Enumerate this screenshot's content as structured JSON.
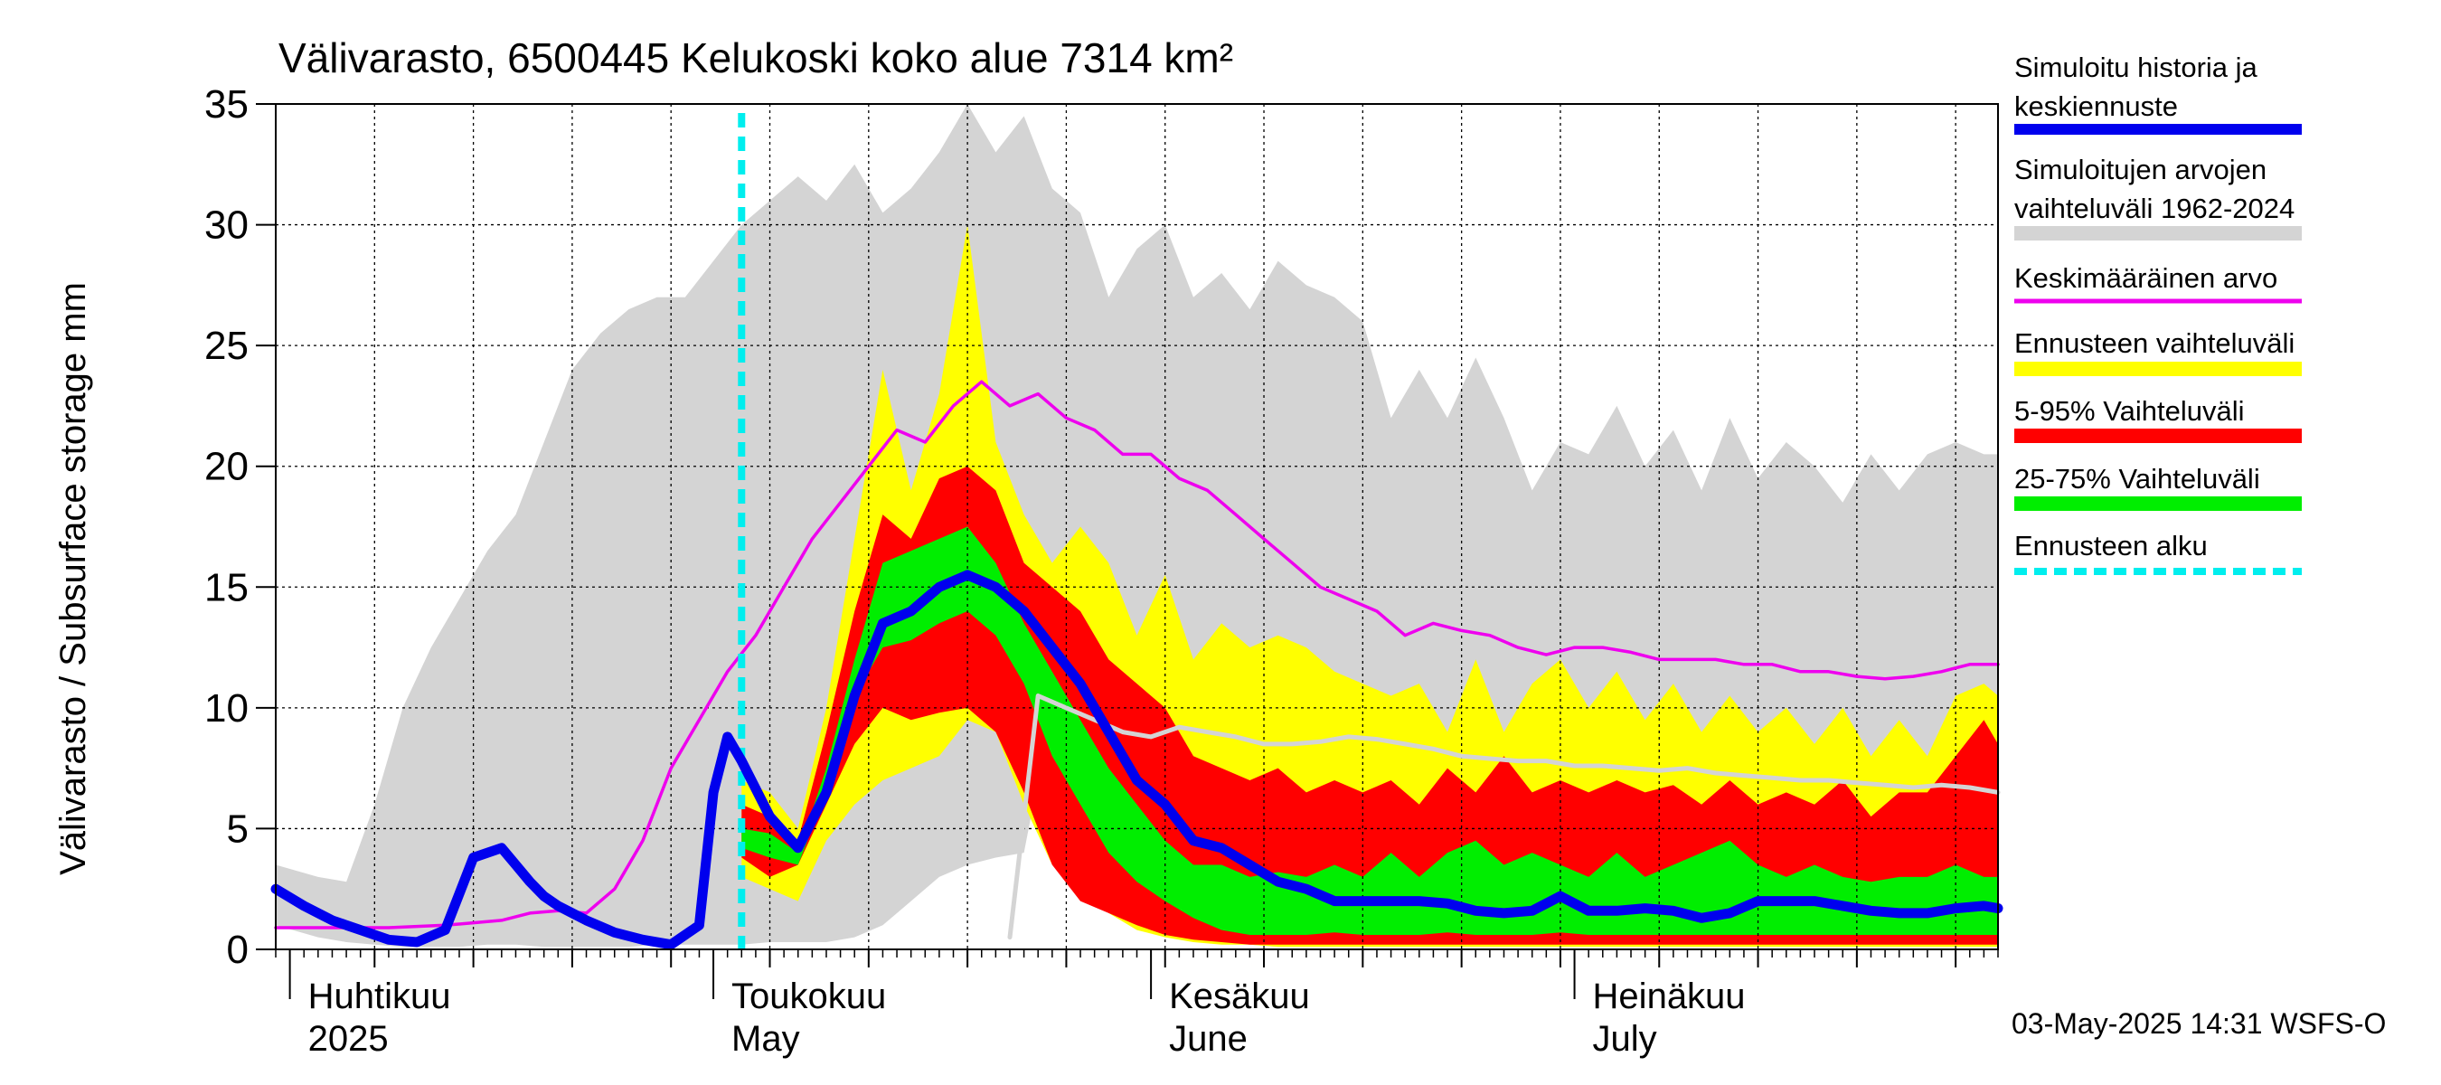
{
  "chart_data": {
    "type": "area",
    "title": "Välivarasto, 6500445 Kelukoski koko alue 7314 km²",
    "ylabel": "Välivarasto / Subsurface storage  mm",
    "ylim": [
      0,
      35
    ],
    "yticks": [
      0,
      5,
      10,
      15,
      20,
      25,
      30,
      35
    ],
    "xlim": [
      "2025-03-31",
      "2025-07-31"
    ],
    "grid": true,
    "legend_position": "right",
    "forecast_start": "2025-05-03",
    "months": [
      {
        "fi": "Huhtikuu",
        "en": "2025",
        "start": "2025-04-01"
      },
      {
        "fi": "Toukokuu",
        "en": "May",
        "start": "2025-05-01"
      },
      {
        "fi": "Kesäkuu",
        "en": "June",
        "start": "2025-06-01"
      },
      {
        "fi": "Heinäkuu",
        "en": "July",
        "start": "2025-07-01"
      }
    ],
    "legend": [
      {
        "key": "sim",
        "line1": "Simuloitu historia ja",
        "line2": "keskiennuste",
        "color": "#0000ee",
        "kind": "line"
      },
      {
        "key": "range",
        "line1": "Simuloitujen arvojen",
        "line2": "vaihteluväli 1962-2024",
        "color": "#d4d4d4",
        "kind": "band"
      },
      {
        "key": "mean",
        "line1": "Keskimääräinen arvo",
        "line2": "",
        "color": "#ee00ee",
        "kind": "thin"
      },
      {
        "key": "fc_range",
        "line1": "Ennusteen vaihteluväli",
        "line2": "",
        "color": "#ffff00",
        "kind": "band"
      },
      {
        "key": "p5_95",
        "line1": "5-95% Vaihteluväli",
        "line2": "",
        "color": "#ff0000",
        "kind": "band"
      },
      {
        "key": "p25_75",
        "line1": "25-75% Vaihteluväli",
        "line2": "",
        "color": "#00ee00",
        "kind": "band"
      },
      {
        "key": "fc_start",
        "line1": "Ennusteen alku",
        "line2": "",
        "color": "#00eeee",
        "kind": "dash"
      }
    ],
    "series": {
      "hist_range": {
        "x": [
          "2025-03-31",
          "2025-04-03",
          "2025-04-05",
          "2025-04-07",
          "2025-04-09",
          "2025-04-11",
          "2025-04-13",
          "2025-04-15",
          "2025-04-17",
          "2025-04-19",
          "2025-04-21",
          "2025-04-23",
          "2025-04-25",
          "2025-04-27",
          "2025-04-29",
          "2025-05-01",
          "2025-05-03",
          "2025-05-05",
          "2025-05-07",
          "2025-05-09",
          "2025-05-11",
          "2025-05-13",
          "2025-05-15",
          "2025-05-17",
          "2025-05-19",
          "2025-05-21",
          "2025-05-23",
          "2025-05-25",
          "2025-05-27",
          "2025-05-29",
          "2025-05-31",
          "2025-06-02",
          "2025-06-04",
          "2025-06-06",
          "2025-06-08",
          "2025-06-10",
          "2025-06-12",
          "2025-06-14",
          "2025-06-16",
          "2025-06-18",
          "2025-06-20",
          "2025-06-22",
          "2025-06-24",
          "2025-06-26",
          "2025-06-28",
          "2025-06-30",
          "2025-07-02",
          "2025-07-04",
          "2025-07-06",
          "2025-07-08",
          "2025-07-10",
          "2025-07-12",
          "2025-07-14",
          "2025-07-16",
          "2025-07-18",
          "2025-07-20",
          "2025-07-22",
          "2025-07-24",
          "2025-07-26",
          "2025-07-28",
          "2025-07-30",
          "2025-07-31"
        ],
        "upper": [
          3.5,
          3.0,
          2.8,
          6.0,
          10.0,
          12.5,
          14.5,
          16.5,
          18.0,
          21.0,
          24.0,
          25.5,
          26.5,
          27.0,
          27.0,
          28.5,
          30.0,
          31.0,
          32.0,
          31.0,
          32.5,
          30.5,
          31.5,
          33.0,
          35.0,
          33.0,
          34.5,
          31.5,
          30.5,
          27.0,
          29.0,
          30.0,
          27.0,
          28.0,
          26.5,
          28.5,
          27.5,
          27.0,
          26.0,
          22.0,
          24.0,
          22.0,
          24.5,
          22.0,
          19.0,
          21.0,
          20.5,
          22.5,
          20.0,
          21.5,
          19.0,
          22.0,
          19.5,
          21.0,
          20.0,
          18.5,
          20.5,
          19.0,
          20.5,
          21.0,
          20.5,
          20.5
        ],
        "lower": [
          1.0,
          0.5,
          0.3,
          0.2,
          0.1,
          0.1,
          0.1,
          0.2,
          0.2,
          0.1,
          0.1,
          0.1,
          0.1,
          0.2,
          0.2,
          0.2,
          0.2,
          0.3,
          0.3,
          0.3,
          0.5,
          1.0,
          2.0,
          3.0,
          3.5,
          3.8,
          4.0,
          10.0,
          8.0,
          4.0,
          2.0,
          1.0,
          0.5,
          0.3,
          0.2,
          0.1,
          0.1,
          0.1,
          0.1,
          0.1,
          0.1,
          0.1,
          0.1,
          0.1,
          0.1,
          0.1,
          0.1,
          0.1,
          0.1,
          0.1,
          0.1,
          0.1,
          0.1,
          0.1,
          0.1,
          0.1,
          0.1,
          0.1,
          0.1,
          0.1,
          0.1,
          0.1
        ]
      },
      "fc_range": {
        "x": [
          "2025-05-03",
          "2025-05-05",
          "2025-05-07",
          "2025-05-09",
          "2025-05-11",
          "2025-05-13",
          "2025-05-15",
          "2025-05-17",
          "2025-05-19",
          "2025-05-21",
          "2025-05-23",
          "2025-05-25",
          "2025-05-27",
          "2025-05-29",
          "2025-05-31",
          "2025-06-02",
          "2025-06-04",
          "2025-06-06",
          "2025-06-08",
          "2025-06-10",
          "2025-06-12",
          "2025-06-14",
          "2025-06-16",
          "2025-06-18",
          "2025-06-20",
          "2025-06-22",
          "2025-06-24",
          "2025-06-26",
          "2025-06-28",
          "2025-06-30",
          "2025-07-02",
          "2025-07-04",
          "2025-07-06",
          "2025-07-08",
          "2025-07-10",
          "2025-07-12",
          "2025-07-14",
          "2025-07-16",
          "2025-07-18",
          "2025-07-20",
          "2025-07-22",
          "2025-07-24",
          "2025-07-26",
          "2025-07-28",
          "2025-07-30",
          "2025-07-31"
        ],
        "upper": [
          7.0,
          6.5,
          5.0,
          10.0,
          17.0,
          24.0,
          19.0,
          23.0,
          30.0,
          21.0,
          18.0,
          16.0,
          17.5,
          16.0,
          13.0,
          15.5,
          12.0,
          13.5,
          12.5,
          13.0,
          12.5,
          11.5,
          11.0,
          10.5,
          11.0,
          9.0,
          12.0,
          9.0,
          11.0,
          12.0,
          10.0,
          11.5,
          9.5,
          11.0,
          9.0,
          10.5,
          9.0,
          10.0,
          8.5,
          10.0,
          8.0,
          9.5,
          8.0,
          10.5,
          11.0,
          10.5
        ],
        "lower": [
          3.0,
          2.5,
          2.0,
          4.5,
          6.0,
          7.0,
          7.5,
          8.0,
          9.5,
          9.0,
          6.0,
          3.5,
          2.5,
          1.5,
          0.8,
          0.5,
          0.3,
          0.2,
          0.2,
          0.1,
          0.1,
          0.1,
          0.1,
          0.1,
          0.1,
          0.1,
          0.1,
          0.1,
          0.1,
          0.1,
          0.1,
          0.1,
          0.1,
          0.1,
          0.1,
          0.1,
          0.1,
          0.1,
          0.1,
          0.1,
          0.1,
          0.1,
          0.1,
          0.1,
          0.1,
          0.1
        ]
      },
      "p5_95": {
        "x": [
          "2025-05-03",
          "2025-05-05",
          "2025-05-07",
          "2025-05-09",
          "2025-05-11",
          "2025-05-13",
          "2025-05-15",
          "2025-05-17",
          "2025-05-19",
          "2025-05-21",
          "2025-05-23",
          "2025-05-25",
          "2025-05-27",
          "2025-05-29",
          "2025-05-31",
          "2025-06-02",
          "2025-06-04",
          "2025-06-06",
          "2025-06-08",
          "2025-06-10",
          "2025-06-12",
          "2025-06-14",
          "2025-06-16",
          "2025-06-18",
          "2025-06-20",
          "2025-06-22",
          "2025-06-24",
          "2025-06-26",
          "2025-06-28",
          "2025-06-30",
          "2025-07-02",
          "2025-07-04",
          "2025-07-06",
          "2025-07-08",
          "2025-07-10",
          "2025-07-12",
          "2025-07-14",
          "2025-07-16",
          "2025-07-18",
          "2025-07-20",
          "2025-07-22",
          "2025-07-24",
          "2025-07-26",
          "2025-07-28",
          "2025-07-30",
          "2025-07-31"
        ],
        "upper": [
          6.0,
          5.5,
          4.5,
          9.0,
          14.0,
          18.0,
          17.0,
          19.5,
          20.0,
          19.0,
          16.0,
          15.0,
          14.0,
          12.0,
          11.0,
          10.0,
          8.0,
          7.5,
          7.0,
          7.5,
          6.5,
          7.0,
          6.5,
          7.0,
          6.0,
          7.5,
          6.5,
          8.0,
          6.5,
          7.0,
          6.5,
          7.0,
          6.5,
          6.8,
          6.0,
          7.0,
          6.0,
          6.5,
          6.0,
          7.0,
          5.5,
          6.5,
          6.5,
          8.0,
          9.5,
          8.5
        ],
        "lower": [
          3.8,
          3.0,
          3.5,
          6.0,
          8.5,
          10.0,
          9.5,
          9.8,
          10.0,
          9.0,
          6.5,
          3.5,
          2.0,
          1.5,
          1.0,
          0.6,
          0.4,
          0.3,
          0.2,
          0.2,
          0.2,
          0.2,
          0.2,
          0.2,
          0.2,
          0.2,
          0.2,
          0.2,
          0.2,
          0.2,
          0.2,
          0.2,
          0.2,
          0.2,
          0.2,
          0.2,
          0.2,
          0.2,
          0.2,
          0.2,
          0.2,
          0.2,
          0.2,
          0.2,
          0.2,
          0.2
        ]
      },
      "p25_75": {
        "x": [
          "2025-05-03",
          "2025-05-05",
          "2025-05-07",
          "2025-05-09",
          "2025-05-11",
          "2025-05-13",
          "2025-05-15",
          "2025-05-17",
          "2025-05-19",
          "2025-05-21",
          "2025-05-23",
          "2025-05-25",
          "2025-05-27",
          "2025-05-29",
          "2025-05-31",
          "2025-06-02",
          "2025-06-04",
          "2025-06-06",
          "2025-06-08",
          "2025-06-10",
          "2025-06-12",
          "2025-06-14",
          "2025-06-16",
          "2025-06-18",
          "2025-06-20",
          "2025-06-22",
          "2025-06-24",
          "2025-06-26",
          "2025-06-28",
          "2025-06-30",
          "2025-07-02",
          "2025-07-04",
          "2025-07-06",
          "2025-07-08",
          "2025-07-10",
          "2025-07-12",
          "2025-07-14",
          "2025-07-16",
          "2025-07-18",
          "2025-07-20",
          "2025-07-22",
          "2025-07-24",
          "2025-07-26",
          "2025-07-28",
          "2025-07-30",
          "2025-07-31"
        ],
        "upper": [
          5.0,
          4.8,
          4.0,
          7.5,
          12.0,
          16.0,
          16.5,
          17.0,
          17.5,
          16.0,
          13.5,
          11.5,
          9.5,
          7.5,
          6.0,
          4.5,
          3.5,
          3.5,
          3.0,
          3.2,
          3.0,
          3.5,
          3.0,
          4.0,
          3.0,
          4.0,
          4.5,
          3.5,
          4.0,
          3.5,
          3.0,
          4.0,
          3.0,
          3.5,
          4.0,
          4.5,
          3.5,
          3.0,
          3.5,
          3.0,
          2.8,
          3.0,
          3.0,
          3.5,
          3.0,
          3.0
        ],
        "lower": [
          4.2,
          3.8,
          3.5,
          6.5,
          10.5,
          12.5,
          12.8,
          13.5,
          14.0,
          13.0,
          11.0,
          8.0,
          6.0,
          4.0,
          2.8,
          2.0,
          1.3,
          0.8,
          0.6,
          0.6,
          0.6,
          0.7,
          0.6,
          0.6,
          0.6,
          0.7,
          0.6,
          0.6,
          0.6,
          0.7,
          0.6,
          0.6,
          0.6,
          0.6,
          0.6,
          0.6,
          0.6,
          0.6,
          0.6,
          0.6,
          0.6,
          0.6,
          0.6,
          0.6,
          0.6,
          0.6
        ]
      },
      "mean": {
        "x": [
          "2025-03-31",
          "2025-04-04",
          "2025-04-08",
          "2025-04-12",
          "2025-04-16",
          "2025-04-18",
          "2025-04-20",
          "2025-04-22",
          "2025-04-24",
          "2025-04-26",
          "2025-04-28",
          "2025-04-30",
          "2025-05-02",
          "2025-05-04",
          "2025-05-06",
          "2025-05-08",
          "2025-05-10",
          "2025-05-12",
          "2025-05-14",
          "2025-05-16",
          "2025-05-18",
          "2025-05-20",
          "2025-05-22",
          "2025-05-24",
          "2025-05-26",
          "2025-05-28",
          "2025-05-30",
          "2025-06-01",
          "2025-06-03",
          "2025-06-05",
          "2025-06-07",
          "2025-06-09",
          "2025-06-11",
          "2025-06-13",
          "2025-06-15",
          "2025-06-17",
          "2025-06-19",
          "2025-06-21",
          "2025-06-23",
          "2025-06-25",
          "2025-06-27",
          "2025-06-29",
          "2025-07-01",
          "2025-07-03",
          "2025-07-05",
          "2025-07-07",
          "2025-07-09",
          "2025-07-11",
          "2025-07-13",
          "2025-07-15",
          "2025-07-17",
          "2025-07-19",
          "2025-07-21",
          "2025-07-23",
          "2025-07-25",
          "2025-07-27",
          "2025-07-29",
          "2025-07-31"
        ],
        "y": [
          0.9,
          0.9,
          0.9,
          1.0,
          1.2,
          1.5,
          1.6,
          1.5,
          2.5,
          4.5,
          7.5,
          9.5,
          11.5,
          13.0,
          15.0,
          17.0,
          18.5,
          20.0,
          21.5,
          21.0,
          22.5,
          23.5,
          22.5,
          23.0,
          22.0,
          21.5,
          20.5,
          20.5,
          19.5,
          19.0,
          18.0,
          17.0,
          16.0,
          15.0,
          14.5,
          14.0,
          13.0,
          13.5,
          13.2,
          13.0,
          12.5,
          12.2,
          12.5,
          12.5,
          12.3,
          12.0,
          12.0,
          12.0,
          11.8,
          11.8,
          11.5,
          11.5,
          11.3,
          11.2,
          11.3,
          11.5,
          11.8,
          11.8
        ]
      },
      "median_forecast": {
        "x": [
          "2025-05-22",
          "2025-05-24",
          "2025-05-26",
          "2025-05-28",
          "2025-05-30",
          "2025-06-01",
          "2025-06-03",
          "2025-06-05",
          "2025-06-07",
          "2025-06-09",
          "2025-06-11",
          "2025-06-13",
          "2025-06-15",
          "2025-06-17",
          "2025-06-19",
          "2025-06-21",
          "2025-06-23",
          "2025-06-25",
          "2025-06-27",
          "2025-06-29",
          "2025-07-01",
          "2025-07-03",
          "2025-07-05",
          "2025-07-07",
          "2025-07-09",
          "2025-07-11",
          "2025-07-13",
          "2025-07-15",
          "2025-07-17",
          "2025-07-19",
          "2025-07-21",
          "2025-07-23",
          "2025-07-25",
          "2025-07-27",
          "2025-07-29",
          "2025-07-31"
        ],
        "y": [
          0.5,
          10.5,
          10.0,
          9.5,
          9.0,
          8.8,
          9.2,
          9.0,
          8.8,
          8.5,
          8.5,
          8.6,
          8.8,
          8.7,
          8.5,
          8.3,
          8.0,
          7.9,
          7.8,
          7.8,
          7.6,
          7.6,
          7.5,
          7.4,
          7.5,
          7.3,
          7.2,
          7.1,
          7.0,
          7.0,
          6.9,
          6.8,
          6.7,
          6.8,
          6.7,
          6.5
        ]
      },
      "simulated": {
        "x": [
          "2025-03-31",
          "2025-04-02",
          "2025-04-04",
          "2025-04-06",
          "2025-04-08",
          "2025-04-10",
          "2025-04-12",
          "2025-04-14",
          "2025-04-16",
          "2025-04-17",
          "2025-04-18",
          "2025-04-19",
          "2025-04-20",
          "2025-04-22",
          "2025-04-24",
          "2025-04-26",
          "2025-04-28",
          "2025-04-30",
          "2025-05-01",
          "2025-05-02",
          "2025-05-03",
          "2025-05-05",
          "2025-05-07",
          "2025-05-09",
          "2025-05-11",
          "2025-05-13",
          "2025-05-15",
          "2025-05-17",
          "2025-05-19",
          "2025-05-21",
          "2025-05-23",
          "2025-05-25",
          "2025-05-27",
          "2025-05-29",
          "2025-05-31",
          "2025-06-02",
          "2025-06-04",
          "2025-06-06",
          "2025-06-08",
          "2025-06-10",
          "2025-06-12",
          "2025-06-14",
          "2025-06-16",
          "2025-06-18",
          "2025-06-20",
          "2025-06-22",
          "2025-06-24",
          "2025-06-26",
          "2025-06-28",
          "2025-06-30",
          "2025-07-02",
          "2025-07-04",
          "2025-07-06",
          "2025-07-08",
          "2025-07-10",
          "2025-07-12",
          "2025-07-14",
          "2025-07-16",
          "2025-07-18",
          "2025-07-20",
          "2025-07-22",
          "2025-07-24",
          "2025-07-26",
          "2025-07-28",
          "2025-07-30",
          "2025-07-31"
        ],
        "y": [
          2.5,
          1.8,
          1.2,
          0.8,
          0.4,
          0.3,
          0.8,
          3.8,
          4.2,
          3.5,
          2.8,
          2.2,
          1.8,
          1.2,
          0.7,
          0.4,
          0.2,
          1.0,
          6.5,
          8.8,
          7.8,
          5.5,
          4.2,
          6.5,
          10.5,
          13.5,
          14.0,
          15.0,
          15.5,
          15.0,
          14.0,
          12.5,
          11.0,
          9.0,
          7.0,
          6.0,
          4.5,
          4.2,
          3.5,
          2.8,
          2.5,
          2.0,
          2.0,
          2.0,
          2.0,
          1.9,
          1.6,
          1.5,
          1.6,
          2.2,
          1.6,
          1.6,
          1.7,
          1.6,
          1.3,
          1.5,
          2.0,
          2.0,
          2.0,
          1.8,
          1.6,
          1.5,
          1.5,
          1.7,
          1.8,
          1.7
        ]
      }
    }
  },
  "footer": {
    "timestamp": "03-May-2025 14:31 WSFS-O"
  }
}
